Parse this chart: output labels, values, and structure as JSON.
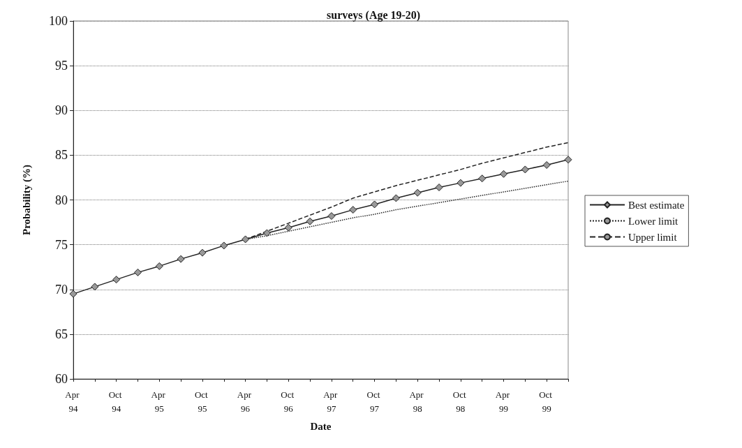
{
  "chart_data": {
    "type": "line",
    "title": "surveys (Age 19-20)",
    "xlabel": "Date",
    "ylabel": "Probability (%)",
    "categories": [
      "Apr 94",
      null,
      "Oct 94",
      null,
      "Apr 95",
      null,
      "Oct 95",
      null,
      "Apr 96",
      null,
      "Oct 96",
      null,
      "Apr 97",
      null,
      "Oct 97",
      null,
      "Apr 98",
      null,
      "Oct 98",
      null,
      "Apr 99",
      null,
      "Oct 99",
      null
    ],
    "series": [
      {
        "name": "Best estimate",
        "color": "#222222",
        "marker": "diamond",
        "line_style": "solid",
        "values": [
          69.5,
          70.3,
          71.1,
          71.9,
          72.6,
          73.4,
          74.1,
          74.9,
          75.6,
          76.3,
          76.9,
          77.6,
          78.2,
          78.9,
          79.5,
          80.2,
          80.8,
          81.4,
          81.9,
          82.4,
          82.9,
          83.4,
          83.9,
          84.5
        ]
      },
      {
        "name": "Lower limit",
        "color": "#222222",
        "marker": "none",
        "line_style": "dotted",
        "values": [
          null,
          null,
          null,
          null,
          null,
          null,
          null,
          null,
          75.6,
          76.0,
          76.5,
          77.0,
          77.5,
          78.0,
          78.4,
          78.9,
          79.3,
          79.7,
          80.1,
          80.5,
          80.9,
          81.3,
          81.7,
          82.1
        ]
      },
      {
        "name": "Upper limit",
        "color": "#222222",
        "marker": "none",
        "line_style": "dashed",
        "values": [
          null,
          null,
          null,
          null,
          null,
          null,
          null,
          null,
          75.6,
          76.5,
          77.4,
          78.3,
          79.2,
          80.2,
          80.9,
          81.6,
          82.2,
          82.8,
          83.4,
          84.1,
          84.7,
          85.3,
          85.9,
          86.4
        ]
      }
    ],
    "ylim": [
      60,
      100
    ],
    "yticks": [
      60,
      65,
      70,
      75,
      80,
      85,
      90,
      95,
      100
    ],
    "grid": "y",
    "legend": "right"
  }
}
